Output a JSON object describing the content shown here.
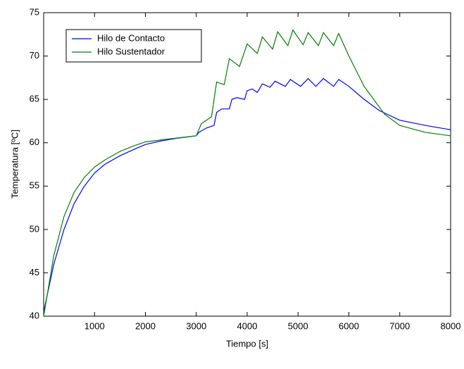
{
  "chart_data": {
    "type": "line",
    "x_label": "Tiempo [s]",
    "y_label": "Temperatura [ºC]",
    "xlim": [
      0,
      8000
    ],
    "xticks": [
      1000,
      2000,
      3000,
      4000,
      5000,
      6000,
      7000,
      8000
    ],
    "ylim": [
      40,
      75
    ],
    "yticks": [
      40,
      45,
      50,
      55,
      60,
      65,
      70,
      75
    ],
    "legend": "upper left",
    "series": [
      {
        "name": "Hilo de Contacto",
        "color": "#0000ff",
        "x": [
          0,
          200,
          400,
          600,
          800,
          1000,
          1200,
          1500,
          1800,
          2000,
          2300,
          2600,
          3000,
          3050,
          3200,
          3350,
          3400,
          3500,
          3650,
          3700,
          3800,
          3950,
          4000,
          4100,
          4200,
          4300,
          4450,
          4550,
          4750,
          4850,
          5050,
          5200,
          5350,
          5500,
          5700,
          5800,
          6000,
          6300,
          6600,
          7000,
          7500,
          8000
        ],
        "values": [
          40.5,
          46,
          50,
          53,
          55,
          56.5,
          57.5,
          58.5,
          59.3,
          59.8,
          60.2,
          60.5,
          60.8,
          61.2,
          61.7,
          62,
          63.5,
          63.9,
          63.9,
          65,
          65.2,
          65,
          66,
          66.2,
          65.8,
          66.8,
          66.4,
          67.1,
          66.5,
          67.3,
          66.5,
          67.4,
          66.5,
          67.4,
          66.5,
          67.3,
          66.5,
          65,
          63.7,
          62.6,
          62,
          61.5
        ]
      },
      {
        "name": "Hilo Sustentador",
        "color": "#008000",
        "x": [
          0,
          200,
          400,
          600,
          800,
          1000,
          1200,
          1500,
          1800,
          2000,
          2400,
          2700,
          3000,
          3100,
          3300,
          3400,
          3550,
          3650,
          3850,
          4000,
          4200,
          4300,
          4500,
          4600,
          4800,
          4900,
          5100,
          5200,
          5400,
          5500,
          5700,
          5800,
          6000,
          6300,
          6700,
          7000,
          7500,
          8000
        ],
        "values": [
          40,
          47,
          51.5,
          54.3,
          56,
          57.2,
          58,
          59,
          59.7,
          60.1,
          60.4,
          60.6,
          60.8,
          62.2,
          63,
          67,
          66.7,
          69.7,
          68.8,
          71.4,
          70.3,
          72.2,
          70.8,
          72.8,
          71.2,
          73,
          71.3,
          72.7,
          71.2,
          72.7,
          71.2,
          72.6,
          70,
          66.5,
          63.3,
          62,
          61.2,
          60.8
        ]
      }
    ]
  }
}
